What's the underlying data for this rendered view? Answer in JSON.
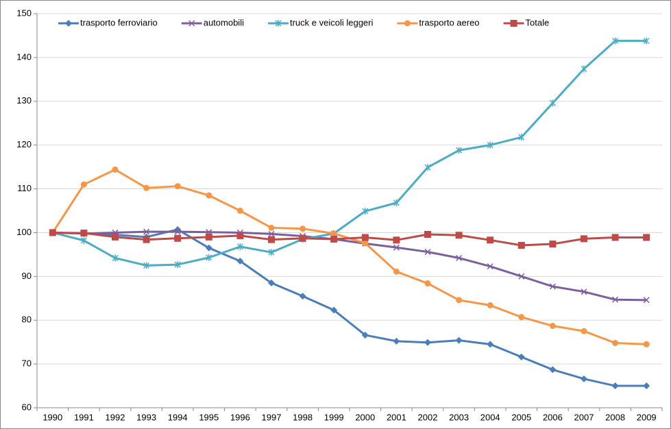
{
  "chart_data": {
    "type": "line",
    "categories": [
      "1990",
      "1991",
      "1992",
      "1993",
      "1994",
      "1995",
      "1996",
      "1997",
      "1998",
      "1999",
      "2000",
      "2001",
      "2002",
      "2003",
      "2004",
      "2005",
      "2006",
      "2007",
      "2008",
      "2009"
    ],
    "series": [
      {
        "name": "trasporto ferroviario",
        "color": "#4a7ebb",
        "marker": "diamond",
        "values": [
          100,
          99.8,
          99.5,
          99,
          100.7,
          96.5,
          93.5,
          88.5,
          85.5,
          82.3,
          76.6,
          75.2,
          74.9,
          75.4,
          74.5,
          71.6,
          68.7,
          66.6,
          65,
          65
        ]
      },
      {
        "name": "automobili",
        "color": "#7d5fa0",
        "marker": "x",
        "values": [
          100,
          99.8,
          100,
          100.2,
          100.2,
          100.1,
          100,
          99.7,
          99.2,
          98.5,
          97.5,
          96.6,
          95.6,
          94.2,
          92.3,
          90,
          87.7,
          86.5,
          84.7,
          84.6
        ]
      },
      {
        "name": "truck e veicoli leggeri",
        "color": "#4bacc6",
        "marker": "star",
        "values": [
          100,
          98.2,
          94.2,
          92.5,
          92.7,
          94.3,
          96.8,
          95.5,
          98.5,
          99.8,
          104.9,
          106.8,
          114.9,
          118.8,
          120,
          121.8,
          129.6,
          137.4,
          143.8,
          143.8
        ]
      },
      {
        "name": "trasporto aereo",
        "color": "#f79646",
        "marker": "circle",
        "values": [
          100,
          111,
          114.4,
          110.2,
          110.6,
          108.5,
          105,
          101.1,
          100.9,
          99.8,
          97.6,
          91.1,
          88.4,
          84.6,
          83.4,
          80.7,
          78.7,
          77.5,
          74.8,
          74.5
        ]
      },
      {
        "name": "Totale",
        "color": "#be4b48",
        "marker": "square",
        "values": [
          100,
          99.9,
          99,
          98.4,
          98.7,
          99,
          99.3,
          98.4,
          98.7,
          98.5,
          98.9,
          98.3,
          99.6,
          99.4,
          98.3,
          97.1,
          97.4,
          98.6,
          98.9,
          98.9
        ]
      }
    ],
    "ylim": [
      60,
      150
    ],
    "yticks": [
      60,
      70,
      80,
      90,
      100,
      110,
      120,
      130,
      140,
      150
    ],
    "grid": true,
    "legend": "top"
  }
}
